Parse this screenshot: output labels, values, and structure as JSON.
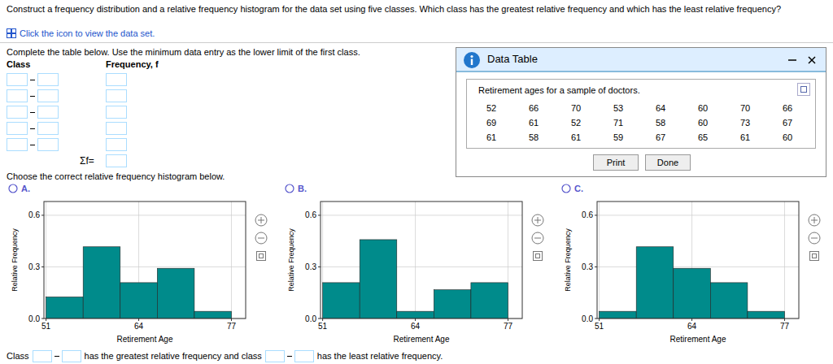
{
  "page": {
    "title": "Construct a frequency distribution and a relative frequency histogram for the data set using five classes. Which class has the greatest relative frequency and which has the least relative frequency?",
    "click_text": "Click the icon to view the data set.",
    "complete_text": "Complete the table below. Use the minimum data entry as the lower limit of the first class.",
    "class_label": "Class",
    "freq_label": "Frequency, f",
    "sum_label": "Σf=",
    "choose_text": "Choose the correct relative frequency histogram below.",
    "bottom_text": "has the greatest relative frequency and class",
    "bottom_text2": "has the least relative frequency.",
    "data_table": {
      "title": "Data Table",
      "subtitle": "Retirement ages for a sample of doctors.",
      "rows": [
        [
          52,
          66,
          70,
          53,
          64,
          60,
          70,
          66
        ],
        [
          69,
          61,
          52,
          71,
          58,
          60,
          73,
          67
        ],
        [
          61,
          58,
          61,
          59,
          67,
          65,
          61,
          60
        ]
      ],
      "buttons": [
        "Print",
        "Done"
      ]
    }
  },
  "chart_data": [
    {
      "type": "histogram",
      "title": "A.",
      "bins": [
        51,
        56.2,
        61.4,
        66.6,
        71.8,
        77
      ],
      "values": [
        0.125,
        0.4167,
        0.2083,
        0.2917,
        0.0417
      ],
      "color": "#008B8B",
      "xlabel": "Retirement Age",
      "ylabel": "Relative Frequency",
      "xlim": [
        50.7,
        79
      ],
      "ylim": [
        0,
        0.68
      ],
      "xticks": [
        51,
        64,
        77
      ],
      "yticks": [
        {
          "value": 0,
          "label": "0.0"
        },
        0.3,
        0.6
      ],
      "grid": true
    },
    {
      "type": "histogram",
      "title": "B.",
      "bins": [
        51,
        56.2,
        61.4,
        66.6,
        71.8,
        77
      ],
      "values": [
        0.2083,
        0.4583,
        0.0417,
        0.1667,
        0.2083
      ],
      "color": "#008B8B",
      "xlabel": "Retirement Age",
      "ylabel": "Relative Frequency",
      "xlim": [
        50.7,
        79
      ],
      "ylim": [
        0,
        0.68
      ],
      "xticks": [
        51,
        64,
        77
      ],
      "yticks": [
        {
          "value": 0,
          "label": "0.0"
        },
        0.3,
        0.6
      ],
      "grid": true
    },
    {
      "type": "histogram",
      "title": "C.",
      "bins": [
        51,
        56.2,
        61.4,
        66.6,
        71.8,
        77
      ],
      "values": [
        0.0417,
        0.4167,
        0.2917,
        0.2083,
        0.0417
      ],
      "color": "#008B8B",
      "xlabel": "Retirement Age",
      "ylabel": "Relative Frequency",
      "xlim": [
        50.7,
        79
      ],
      "ylim": [
        0,
        0.68
      ],
      "xticks": [
        51,
        64,
        77
      ],
      "yticks": [
        {
          "value": 0,
          "label": "0.0"
        },
        0.3,
        0.6
      ],
      "grid": true
    }
  ]
}
